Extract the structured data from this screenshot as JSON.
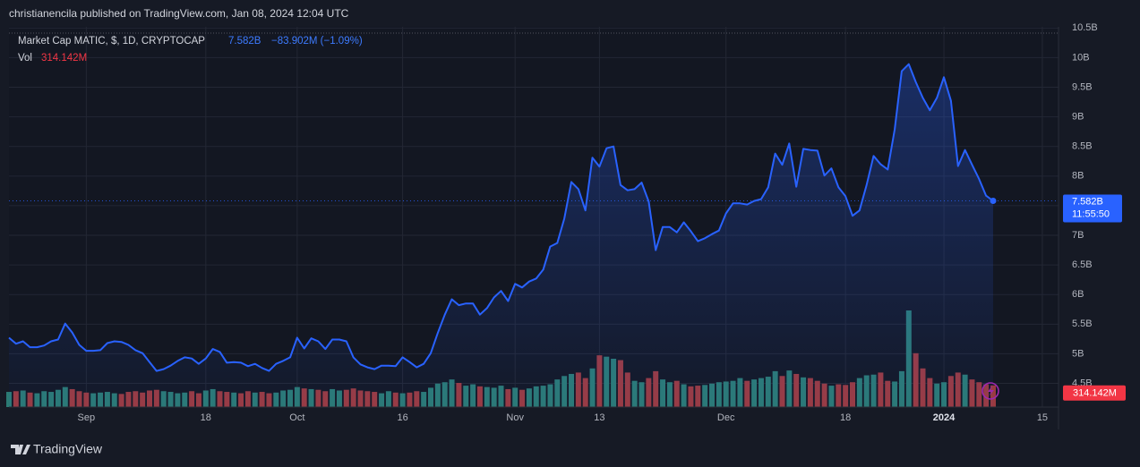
{
  "header": {
    "text": "christianencila published on TradingView.com, Jan 08, 2024 12:04 UTC"
  },
  "footer": {
    "brand": "TradingView"
  },
  "chart_data": {
    "type": "line",
    "legend": {
      "price_value": "7.582B",
      "change": "−83.902M (−1.09%)",
      "vol_value": "314.142M",
      "time_left": "11:55:50"
    },
    "categories": [
      null,
      null,
      null,
      null,
      null,
      null,
      null,
      null,
      null,
      null,
      null,
      "Sep",
      null,
      null,
      null,
      null,
      null,
      null,
      null,
      null,
      null,
      null,
      null,
      null,
      null,
      null,
      null,
      null,
      "18",
      null,
      null,
      null,
      null,
      null,
      null,
      null,
      null,
      null,
      null,
      null,
      null,
      "Oct",
      null,
      null,
      null,
      null,
      null,
      null,
      null,
      null,
      null,
      null,
      null,
      null,
      null,
      null,
      "16",
      null,
      null,
      null,
      null,
      null,
      null,
      null,
      null,
      null,
      null,
      null,
      null,
      null,
      null,
      null,
      "Nov",
      null,
      null,
      null,
      null,
      null,
      null,
      null,
      null,
      null,
      null,
      null,
      "13",
      null,
      null,
      null,
      null,
      null,
      null,
      null,
      null,
      null,
      null,
      null,
      null,
      null,
      null,
      null,
      null,
      null,
      "Dec",
      null,
      null,
      null,
      null,
      null,
      null,
      null,
      null,
      null,
      null,
      null,
      null,
      null,
      null,
      null,
      null,
      "18",
      null,
      null,
      null,
      null,
      null,
      null,
      null,
      null,
      null,
      null,
      null,
      null,
      null,
      "2024",
      null,
      null,
      null,
      null,
      null,
      null,
      null,
      null,
      null,
      null,
      null,
      null,
      null,
      "15",
      null,
      null
    ],
    "series": [
      {
        "name": "Market Cap MATIC, $, 1D, CRYPTOCAP",
        "color": "#2962ff",
        "values": [
          5.27,
          5.17,
          5.21,
          5.11,
          5.11,
          5.14,
          5.21,
          5.24,
          5.51,
          5.36,
          5.15,
          5.05,
          5.05,
          5.06,
          5.18,
          5.21,
          5.2,
          5.15,
          5.06,
          5.01,
          4.86,
          4.71,
          4.74,
          4.8,
          4.88,
          4.94,
          4.92,
          4.83,
          4.92,
          5.08,
          5.03,
          4.85,
          4.86,
          4.85,
          4.79,
          4.83,
          4.76,
          4.71,
          4.83,
          4.88,
          4.94,
          5.27,
          5.09,
          5.26,
          5.21,
          5.08,
          5.24,
          5.24,
          5.21,
          4.94,
          4.82,
          4.77,
          4.74,
          4.8,
          4.8,
          4.79,
          4.94,
          4.86,
          4.77,
          4.83,
          5.01,
          5.35,
          5.66,
          5.92,
          5.82,
          5.85,
          5.85,
          5.66,
          5.77,
          5.95,
          6.06,
          5.89,
          6.18,
          6.12,
          6.22,
          6.27,
          6.42,
          6.81,
          6.87,
          7.28,
          7.9,
          7.78,
          7.42,
          8.31,
          8.16,
          8.47,
          8.5,
          7.85,
          7.76,
          7.78,
          7.89,
          7.57,
          6.75,
          7.14,
          7.14,
          7.05,
          7.22,
          7.07,
          6.9,
          6.95,
          7.02,
          7.08,
          7.37,
          7.54,
          7.54,
          7.52,
          7.58,
          7.61,
          7.81,
          8.38,
          8.19,
          8.55,
          7.82,
          8.46,
          8.44,
          8.43,
          8.01,
          8.13,
          7.81,
          7.66,
          7.33,
          7.42,
          7.85,
          8.34,
          8.2,
          8.11,
          8.79,
          9.77,
          9.89,
          9.59,
          9.32,
          9.11,
          9.32,
          9.67,
          9.27,
          8.17,
          8.44,
          8.19,
          7.95,
          7.67,
          7.582,
          null,
          null,
          null,
          null,
          null,
          null,
          null,
          null,
          null
        ]
      },
      {
        "name": "Vol",
        "color": "#f23645",
        "up_color": "#2b7a74",
        "down_color": "#9b3a40",
        "values": [
          220,
          230,
          240,
          210,
          200,
          230,
          220,
          250,
          290,
          260,
          230,
          210,
          200,
          210,
          220,
          200,
          190,
          220,
          230,
          210,
          240,
          250,
          230,
          220,
          200,
          210,
          230,
          200,
          240,
          260,
          230,
          220,
          210,
          200,
          230,
          210,
          220,
          200,
          210,
          240,
          250,
          290,
          270,
          260,
          250,
          230,
          260,
          240,
          250,
          270,
          240,
          230,
          220,
          200,
          230,
          210,
          200,
          210,
          230,
          220,
          280,
          340,
          360,
          400,
          350,
          310,
          330,
          300,
          290,
          280,
          310,
          260,
          280,
          250,
          270,
          300,
          310,
          330,
          400,
          450,
          480,
          500,
          420,
          560,
          750,
          730,
          700,
          680,
          500,
          380,
          360,
          420,
          520,
          400,
          360,
          380,
          330,
          300,
          310,
          320,
          340,
          360,
          370,
          380,
          420,
          380,
          400,
          420,
          440,
          520,
          450,
          530,
          480,
          430,
          420,
          380,
          340,
          310,
          330,
          320,
          360,
          420,
          460,
          470,
          500,
          380,
          370,
          520,
          1400,
          780,
          560,
          420,
          340,
          360,
          450,
          500,
          470,
          400,
          360,
          330,
          314.142,
          null,
          null,
          null,
          null,
          null,
          null,
          null,
          null,
          null
        ]
      }
    ],
    "ylim": [
      4.1,
      10.52
    ],
    "yticks": [
      {
        "value": 4.5,
        "label": "4.5B"
      },
      {
        "value": 5,
        "label": "5B"
      },
      {
        "value": 5.5,
        "label": "5.5B"
      },
      {
        "value": 6,
        "label": "6B"
      },
      {
        "value": 6.5,
        "label": "6.5B"
      },
      {
        "value": 7,
        "label": "7B"
      },
      {
        "value": 7.5,
        "label": "7.5B"
      },
      {
        "value": 8,
        "label": "8B"
      },
      {
        "value": 8.5,
        "label": "8.5B"
      },
      {
        "value": 9,
        "label": "9B"
      },
      {
        "value": 9.5,
        "label": "9.5B"
      },
      {
        "value": 10,
        "label": "10B"
      },
      {
        "value": 10.5,
        "label": "10.5B"
      }
    ],
    "grid": true
  }
}
